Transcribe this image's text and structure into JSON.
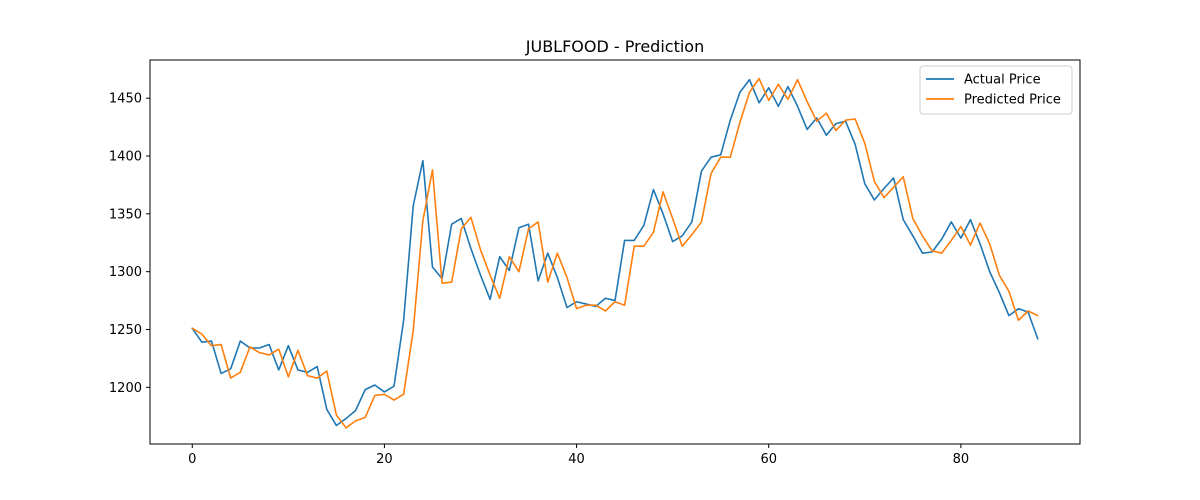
{
  "chart_data": {
    "type": "line",
    "title": "JUBLFOOD - Prediction",
    "xlabel": "",
    "ylabel": "",
    "xlim": [
      -4.4,
      92.4
    ],
    "ylim": [
      1151,
      1483
    ],
    "xticks": [
      0,
      20,
      40,
      60,
      80
    ],
    "xtick_labels": [
      "0",
      "20",
      "40",
      "60",
      "80"
    ],
    "yticks": [
      1200,
      1250,
      1300,
      1350,
      1400,
      1450
    ],
    "ytick_labels": [
      "1200",
      "1250",
      "1300",
      "1350",
      "1400",
      "1450"
    ],
    "grid": false,
    "legend_position": "top-right",
    "series": [
      {
        "name": "Actual Price",
        "color": "#1f77b4",
        "x": [
          0,
          1,
          2,
          3,
          4,
          5,
          6,
          7,
          8,
          9,
          10,
          11,
          12,
          13,
          14,
          15,
          16,
          17,
          18,
          19,
          20,
          21,
          22,
          23,
          24,
          25,
          26,
          27,
          28,
          29,
          30,
          31,
          32,
          33,
          34,
          35,
          36,
          37,
          38,
          39,
          40,
          41,
          42,
          43,
          44,
          45,
          46,
          47,
          48,
          49,
          50,
          51,
          52,
          53,
          54,
          55,
          56,
          57,
          58,
          59,
          60,
          61,
          62,
          63,
          64,
          65,
          66,
          67,
          68,
          69,
          70,
          71,
          72,
          73,
          74,
          75,
          76,
          77,
          78,
          79,
          80,
          81,
          82,
          83,
          84,
          85,
          86,
          87,
          88
        ],
        "values": [
          1251,
          1239,
          1240,
          1212,
          1216,
          1240,
          1234,
          1234,
          1237,
          1215,
          1236,
          1215,
          1213,
          1218,
          1181,
          1167,
          1173,
          1180,
          1198,
          1202,
          1196,
          1201,
          1258,
          1357,
          1396,
          1304,
          1294,
          1341,
          1346,
          1320,
          1297,
          1276,
          1313,
          1301,
          1338,
          1341,
          1292,
          1316,
          1295,
          1269,
          1274,
          1272,
          1270,
          1277,
          1275,
          1327,
          1327,
          1340,
          1371,
          1350,
          1326,
          1331,
          1343,
          1387,
          1399,
          1401,
          1431,
          1455,
          1466,
          1446,
          1459,
          1443,
          1460,
          1443,
          1423,
          1433,
          1418,
          1428,
          1430,
          1410,
          1376,
          1362,
          1372,
          1381,
          1345,
          1331,
          1316,
          1317,
          1328,
          1343,
          1329,
          1345,
          1324,
          1300,
          1282,
          1262,
          1268,
          1265,
          1242
        ]
      },
      {
        "name": "Predicted Price",
        "color": "#ff7f0e",
        "x": [
          0,
          1,
          2,
          3,
          4,
          5,
          6,
          7,
          8,
          9,
          10,
          11,
          12,
          13,
          14,
          15,
          16,
          17,
          18,
          19,
          20,
          21,
          22,
          23,
          24,
          25,
          26,
          27,
          28,
          29,
          30,
          31,
          32,
          33,
          34,
          35,
          36,
          37,
          38,
          39,
          40,
          41,
          42,
          43,
          44,
          45,
          46,
          47,
          48,
          49,
          50,
          51,
          52,
          53,
          54,
          55,
          56,
          57,
          58,
          59,
          60,
          61,
          62,
          63,
          64,
          65,
          66,
          67,
          68,
          69,
          70,
          71,
          72,
          73,
          74,
          75,
          76,
          77,
          78,
          79,
          80,
          81,
          82,
          83,
          84,
          85,
          86,
          87,
          88
        ],
        "values": [
          1251,
          1246,
          1236,
          1237,
          1208,
          1213,
          1235,
          1230,
          1228,
          1233,
          1209,
          1232,
          1210,
          1208,
          1214,
          1176,
          1165,
          1171,
          1174,
          1193,
          1194,
          1189,
          1194,
          1249,
          1344,
          1388,
          1290,
          1291,
          1337,
          1347,
          1319,
          1297,
          1277,
          1313,
          1300,
          1337,
          1343,
          1291,
          1316,
          1295,
          1268,
          1271,
          1271,
          1266,
          1274,
          1271,
          1322,
          1322,
          1334,
          1369,
          1346,
          1322,
          1332,
          1343,
          1385,
          1399,
          1399,
          1429,
          1455,
          1467,
          1448,
          1462,
          1449,
          1466,
          1447,
          1430,
          1437,
          1422,
          1431,
          1432,
          1411,
          1378,
          1364,
          1373,
          1382,
          1346,
          1331,
          1318,
          1316,
          1327,
          1339,
          1323,
          1342,
          1324,
          1297,
          1283,
          1258,
          1266,
          1262
        ]
      }
    ]
  }
}
